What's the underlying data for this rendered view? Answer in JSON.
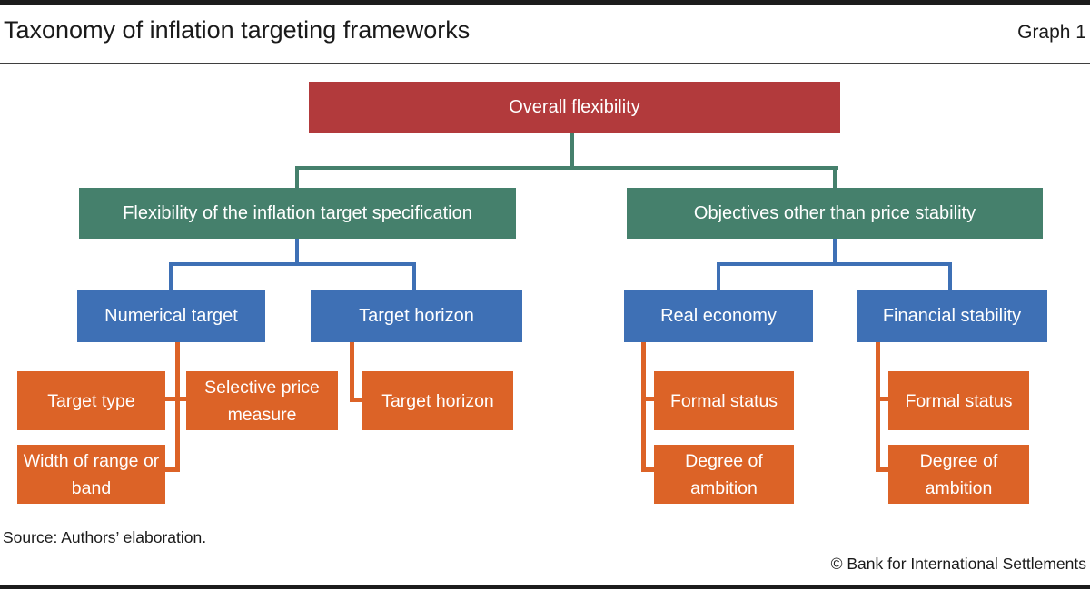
{
  "header": {
    "title": "Taxonomy of inflation targeting frameworks",
    "graph_label": "Graph 1"
  },
  "colors": {
    "red": "#b23a3c",
    "green": "#45806c",
    "blue": "#3e70b5",
    "orange": "#dc6327",
    "rule": "#1c1c1c"
  },
  "tree": {
    "root": {
      "label": "Overall flexibility"
    },
    "level2": {
      "flex_spec": {
        "label": "Flexibility of the inflation target specification"
      },
      "objectives": {
        "label": "Objectives other than price stability"
      }
    },
    "level3": {
      "numerical_target": {
        "label": "Numerical target"
      },
      "target_horizon": {
        "label": "Target horizon"
      },
      "real_economy": {
        "label": "Real economy"
      },
      "financial_stability": {
        "label": "Financial stability"
      }
    },
    "level4": {
      "target_type": {
        "label": "Target type"
      },
      "selective_price_measure": {
        "label": "Selective price measure"
      },
      "width_of_range_or_band": {
        "label": "Width of range or band"
      },
      "target_horizon": {
        "label": "Target horizon"
      },
      "formal_status_real": {
        "label": "Formal status"
      },
      "degree_of_ambition_real": {
        "label": "Degree of ambition"
      },
      "formal_status_fin": {
        "label": "Formal status"
      },
      "degree_of_ambition_fin": {
        "label": "Degree of ambition"
      }
    }
  },
  "footer": {
    "source": "Source: Authors’ elaboration.",
    "copyright": "© Bank for International Settlements"
  }
}
